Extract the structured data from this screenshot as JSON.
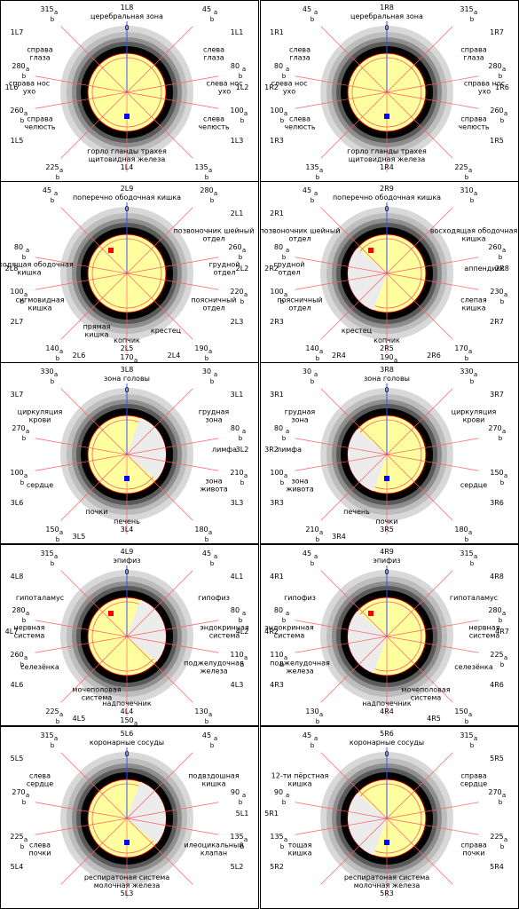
{
  "colors": {
    "ring_dark": "#000000",
    "ring_mid": "#5a5a5a",
    "ring_light": "#c8c8c8",
    "active_sector": "#ffffa0",
    "inactive_sector": "#ececec",
    "axis_line": "#ff6060",
    "zero_line": "#3a4fff",
    "marker_blue": "#0000ff",
    "marker_red": "#ff0000"
  },
  "panels": [
    {
      "id": "1L",
      "top_labels": [
        "1L8",
        "церебральная зона"
      ],
      "bottom_labels": [
        "горло гланды трахея",
        "щитовидная железа",
        "1L4"
      ],
      "codes": [
        [
          "1L7",
          "tl"
        ],
        [
          "1L1",
          "tr"
        ],
        [
          "1L6",
          "l1"
        ],
        [
          "1L2",
          "r1"
        ],
        [
          "1L5",
          "l2"
        ],
        [
          "1L3",
          "r2"
        ]
      ],
      "sector_labels": [
        [
          "справа глаза",
          "ul"
        ],
        [
          "слева глаза",
          "ur"
        ],
        [
          "справа нос ухо",
          "ml"
        ],
        [
          "слева нос ухо",
          "mr"
        ],
        [
          "справа челюсть",
          "ll"
        ],
        [
          "слева челюсть",
          "lr"
        ]
      ],
      "angles": [
        "315",
        "45",
        "280",
        "80",
        "260",
        "100",
        "225",
        "135"
      ],
      "marker": "blue"
    },
    {
      "id": "1R",
      "top_labels": [
        "1R8",
        "церебральная зона"
      ],
      "bottom_labels": [
        "горло гланды трахея",
        "щитовидная железа",
        "1R4"
      ],
      "codes": [
        [
          "1R1",
          "tl"
        ],
        [
          "1R7",
          "tr"
        ],
        [
          "1R2",
          "l1"
        ],
        [
          "1R6",
          "r1"
        ],
        [
          "1R3",
          "l2"
        ],
        [
          "1R5",
          "r2"
        ]
      ],
      "sector_labels": [
        [
          "слева глаза",
          "ul"
        ],
        [
          "справа глаза",
          "ur"
        ],
        [
          "слева нос ухо",
          "ml"
        ],
        [
          "справа нос ухо",
          "mr"
        ],
        [
          "слева челюсть",
          "ll"
        ],
        [
          "справа челюсть",
          "lr"
        ]
      ],
      "angles": [
        "45",
        "315",
        "80",
        "280",
        "100",
        "260",
        "135",
        "225"
      ],
      "marker": "blue"
    },
    {
      "id": "2L",
      "top_labels": [
        "2L9",
        "поперечно ободочная кишка"
      ],
      "bottom_labels": [
        "копчик",
        "2L5"
      ],
      "codes": [
        [
          "2L1",
          "tr"
        ],
        [
          "2L8",
          "l1"
        ],
        [
          "2L2",
          "r1"
        ],
        [
          "2L3",
          "r2"
        ],
        [
          "2L7",
          "l2"
        ],
        [
          "2L6",
          "bl"
        ],
        [
          "2L4",
          "br"
        ]
      ],
      "sector_labels": [
        [
          "позвоночник шейный отдел",
          "ur"
        ],
        [
          "нисходящая ободочная кишка",
          "ml"
        ],
        [
          "грудной отдел",
          "mr"
        ],
        [
          "сигмовидная кишка",
          "ll"
        ],
        [
          "поясничный отдел",
          "lr"
        ],
        [
          "прямая кишка",
          "bl"
        ],
        [
          "крестец",
          "br"
        ]
      ],
      "angles": [
        "45",
        "280",
        "80",
        "260",
        "100",
        "220",
        "140",
        "190",
        "170"
      ],
      "marker": "red"
    },
    {
      "id": "2R",
      "top_labels": [
        "2R9",
        "поперечно ободочная кишка"
      ],
      "bottom_labels": [
        "копчик",
        "2R5"
      ],
      "codes": [
        [
          "2R1",
          "tl"
        ],
        [
          "2R8",
          "r1"
        ],
        [
          "2R2",
          "l1"
        ],
        [
          "2R7",
          "r2"
        ],
        [
          "2R3",
          "l2"
        ],
        [
          "2R4",
          "bl"
        ],
        [
          "2R6",
          "br"
        ]
      ],
      "sector_labels": [
        [
          "позвоночник шейный отдел",
          "ul"
        ],
        [
          "восходящая ободочная кишка",
          "ur"
        ],
        [
          "грудной отдел",
          "ml"
        ],
        [
          "аппендикс",
          "mr"
        ],
        [
          "поясничный отдел",
          "ll"
        ],
        [
          "слепая кишка",
          "lr"
        ],
        [
          "крестец",
          "bl"
        ]
      ],
      "angles": [
        "45",
        "310",
        "80",
        "260",
        "100",
        "230",
        "140",
        "170",
        "190"
      ],
      "marker": "red"
    },
    {
      "id": "3L",
      "top_labels": [
        "3L8",
        "зона головы"
      ],
      "bottom_labels": [
        "печень",
        "3L4"
      ],
      "codes": [
        [
          "3L7",
          "tl"
        ],
        [
          "3L1",
          "tr"
        ],
        [
          "3L2",
          "r1"
        ],
        [
          "3L6",
          "l2"
        ],
        [
          "3L3",
          "r2"
        ],
        [
          "3L5",
          "bl"
        ]
      ],
      "sector_labels": [
        [
          "циркуляция крови",
          "ul"
        ],
        [
          "грудная зона",
          "ur"
        ],
        [
          "лимфа",
          "mr"
        ],
        [
          "сердце",
          "ll"
        ],
        [
          "зона живота",
          "lr"
        ],
        [
          "почки",
          "bl"
        ]
      ],
      "angles": [
        "330",
        "30",
        "270",
        "80",
        "100",
        "210",
        "150",
        "180"
      ],
      "marker": "blue"
    },
    {
      "id": "3R",
      "top_labels": [
        "3R8",
        "зона головы"
      ],
      "bottom_labels": [
        "почки",
        "3R5"
      ],
      "codes": [
        [
          "3R1",
          "tl"
        ],
        [
          "3R7",
          "tr"
        ],
        [
          "3R2",
          "l1"
        ],
        [
          "3R6",
          "r2"
        ],
        [
          "3R3",
          "l2"
        ],
        [
          "3R4",
          "bl"
        ]
      ],
      "sector_labels": [
        [
          "грудная зона",
          "ul"
        ],
        [
          "циркуляция крови",
          "ur"
        ],
        [
          "лимфа",
          "ml"
        ],
        [
          "сердце",
          "lr"
        ],
        [
          "зона живота",
          "ll"
        ],
        [
          "печень",
          "bl"
        ]
      ],
      "angles": [
        "30",
        "330",
        "80",
        "270",
        "100",
        "150",
        "210",
        "180"
      ],
      "marker": "blue"
    },
    {
      "id": "4L",
      "top_labels": [
        "4L9",
        "эпифиз"
      ],
      "bottom_labels": [
        "надпочечник",
        "4L4"
      ],
      "codes": [
        [
          "4L8",
          "tl"
        ],
        [
          "4L1",
          "tr"
        ],
        [
          "4L7",
          "l1"
        ],
        [
          "4L2",
          "r1"
        ],
        [
          "4L6",
          "l2"
        ],
        [
          "4L3",
          "r2"
        ],
        [
          "4L5",
          "bl"
        ]
      ],
      "sector_labels": [
        [
          "гипоталамус",
          "ul"
        ],
        [
          "гипофиз",
          "ur"
        ],
        [
          "нервная система",
          "ml"
        ],
        [
          "эндокринная система",
          "mr"
        ],
        [
          "селезёнка",
          "ll"
        ],
        [
          "поджелудочная железа",
          "lr"
        ],
        [
          "мочеполовая система",
          "bl"
        ]
      ],
      "angles": [
        "315",
        "45",
        "280",
        "80",
        "260",
        "110",
        "225",
        "130",
        "150"
      ],
      "marker": "red"
    },
    {
      "id": "4R",
      "top_labels": [
        "4R9",
        "эпифиз"
      ],
      "bottom_labels": [
        "надпочечник",
        "4R4"
      ],
      "codes": [
        [
          "4R1",
          "tl"
        ],
        [
          "4R8",
          "tr"
        ],
        [
          "4R2",
          "l1"
        ],
        [
          "4R7",
          "r1"
        ],
        [
          "4R3",
          "l2"
        ],
        [
          "4R6",
          "r2"
        ],
        [
          "4R5",
          "br"
        ]
      ],
      "sector_labels": [
        [
          "гипофиз",
          "ul"
        ],
        [
          "гипоталамус",
          "ur"
        ],
        [
          "эндокринная система",
          "ml"
        ],
        [
          "нервная система",
          "mr"
        ],
        [
          "поджелудочная железа",
          "ll"
        ],
        [
          "селезёнка",
          "lr"
        ],
        [
          "мочеполовая система",
          "br"
        ]
      ],
      "angles": [
        "45",
        "315",
        "80",
        "280",
        "110",
        "225",
        "130",
        "150"
      ],
      "marker": "red"
    },
    {
      "id": "5L",
      "top_labels": [
        "5L6",
        "коронарные сосуды"
      ],
      "bottom_labels": [
        "респиратоная система",
        "молочная железа",
        "5L3"
      ],
      "codes": [
        [
          "5L5",
          "tl"
        ],
        [
          "5L1",
          "r1"
        ],
        [
          "5L2",
          "r2"
        ],
        [
          "5L4",
          "l2"
        ]
      ],
      "sector_labels": [
        [
          "слева сердце",
          "ul"
        ],
        [
          "подвздошная кишка",
          "ur"
        ],
        [
          "слева почки",
          "ll"
        ],
        [
          "илеоцикальный клапан",
          "lr"
        ]
      ],
      "angles": [
        "315",
        "45",
        "270",
        "90",
        "225",
        "135"
      ],
      "marker": "blue"
    },
    {
      "id": "5R",
      "top_labels": [
        "5R6",
        "коронарные сосуды"
      ],
      "bottom_labels": [
        "респиратоная система",
        "молочная железа",
        "5R3"
      ],
      "codes": [
        [
          "5R5",
          "tr"
        ],
        [
          "5R1",
          "l1"
        ],
        [
          "5R2",
          "l2"
        ],
        [
          "5R4",
          "r2"
        ]
      ],
      "sector_labels": [
        [
          "12-ти пёрстная кишка",
          "ul"
        ],
        [
          "справа сердце",
          "ur"
        ],
        [
          "тощая кишка",
          "ll"
        ],
        [
          "справа почки",
          "lr"
        ]
      ],
      "angles": [
        "45",
        "315",
        "90",
        "270",
        "135",
        "225"
      ],
      "marker": "blue"
    }
  ]
}
